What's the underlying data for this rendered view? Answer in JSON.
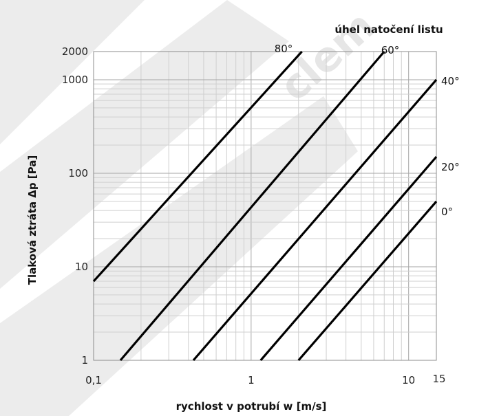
{
  "chart_data": {
    "type": "line",
    "x_scale": "log",
    "y_scale": "log",
    "xlim": [
      0.1,
      15
    ],
    "ylim": [
      1,
      2000
    ],
    "grid": true,
    "xlabel": "rychlost v potrubí w [m/s]",
    "ylabel": "Tlaková ztráta Δp [Pa]",
    "legend_title": "úhel natočení listu",
    "x_ticks": [
      {
        "value": 0.1,
        "label": "0,1"
      },
      {
        "value": 1,
        "label": "1"
      },
      {
        "value": 10,
        "label": "10"
      },
      {
        "value": 15,
        "label": "15"
      }
    ],
    "y_ticks": [
      {
        "value": 1,
        "label": "1"
      },
      {
        "value": 10,
        "label": "10"
      },
      {
        "value": 100,
        "label": "100"
      },
      {
        "value": 1000,
        "label": "1000"
      },
      {
        "value": 2000,
        "label": "2000"
      }
    ],
    "series": [
      {
        "name": "80°",
        "points": [
          [
            0.1,
            7
          ],
          [
            2.1,
            2000
          ]
        ]
      },
      {
        "name": "60°",
        "points": [
          [
            0.148,
            1
          ],
          [
            7.0,
            2000
          ]
        ]
      },
      {
        "name": "40°",
        "points": [
          [
            0.43,
            1
          ],
          [
            15,
            1000
          ]
        ]
      },
      {
        "name": "20°",
        "points": [
          [
            1.15,
            1
          ],
          [
            15,
            150
          ]
        ]
      },
      {
        "name": "0°",
        "points": [
          [
            2.0,
            1
          ],
          [
            15,
            50
          ]
        ]
      }
    ],
    "colors": {
      "line": "#000000",
      "grid_major": "#a6a6a6",
      "grid_minor": "#cfcfcf"
    }
  }
}
